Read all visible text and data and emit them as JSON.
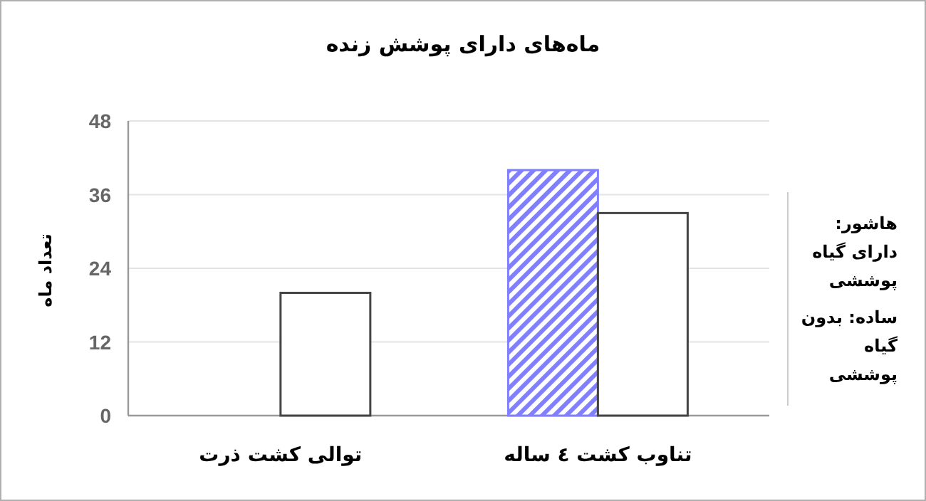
{
  "chart_data": {
    "type": "bar",
    "title": "ماه‌های دارای پوشش زنده",
    "ylabel": "تعداد ماه",
    "categories": [
      "توالی کشت ذرت",
      "تناوب کشت ٤ ساله"
    ],
    "series": [
      {
        "color": "#8080ff",
        "values": [
          null,
          40
        ]
      },
      {
        "color": "#ffffff",
        "values": [
          20,
          33
        ]
      }
    ],
    "ylim": [
      0,
      48
    ],
    "yticks": [
      0,
      12,
      24,
      36,
      48
    ],
    "grid": "y",
    "annotations": [
      "هاشور: دارای گیاه پوششی",
      "ساده: بدون گیاه پوششی"
    ]
  }
}
